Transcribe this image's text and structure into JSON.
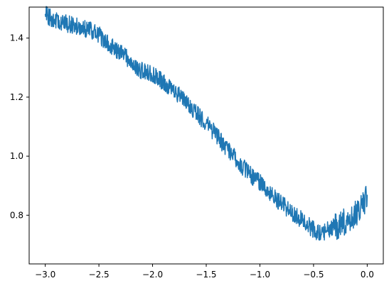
{
  "chart_data": {
    "type": "line",
    "title": "",
    "xlabel": "",
    "ylabel": "",
    "xlim": [
      -3.15,
      0.15
    ],
    "ylim": [
      0.635,
      1.505
    ],
    "grid": false,
    "legend": "none",
    "x_ticks": [
      {
        "value": -3.0,
        "label": "−3.0"
      },
      {
        "value": -2.5,
        "label": "−2.5"
      },
      {
        "value": -2.0,
        "label": "−2.0"
      },
      {
        "value": -1.5,
        "label": "−1.5"
      },
      {
        "value": -1.0,
        "label": "−1.0"
      },
      {
        "value": -0.5,
        "label": "−0.5"
      },
      {
        "value": 0.0,
        "label": "0.0"
      }
    ],
    "y_ticks": [
      {
        "value": 0.8,
        "label": "0.8"
      },
      {
        "value": 1.0,
        "label": "1.0"
      },
      {
        "value": 1.2,
        "label": "1.2"
      },
      {
        "value": 1.4,
        "label": "1.4"
      }
    ],
    "series": [
      {
        "color": "#1f77b4",
        "points": [
          [
            -3.0,
            1.48
          ],
          [
            -2.9,
            1.46
          ],
          [
            -2.8,
            1.45
          ],
          [
            -2.7,
            1.44
          ],
          [
            -2.6,
            1.43
          ],
          [
            -2.5,
            1.41
          ],
          [
            -2.4,
            1.38
          ],
          [
            -2.3,
            1.35
          ],
          [
            -2.2,
            1.32
          ],
          [
            -2.1,
            1.29
          ],
          [
            -2.0,
            1.28
          ],
          [
            -1.9,
            1.25
          ],
          [
            -1.8,
            1.22
          ],
          [
            -1.7,
            1.19
          ],
          [
            -1.6,
            1.15
          ],
          [
            -1.5,
            1.11
          ],
          [
            -1.4,
            1.07
          ],
          [
            -1.3,
            1.02
          ],
          [
            -1.2,
            0.98
          ],
          [
            -1.1,
            0.94
          ],
          [
            -1.0,
            0.91
          ],
          [
            -0.9,
            0.87
          ],
          [
            -0.8,
            0.84
          ],
          [
            -0.7,
            0.81
          ],
          [
            -0.6,
            0.78
          ],
          [
            -0.5,
            0.75
          ],
          [
            -0.45,
            0.74
          ],
          [
            -0.4,
            0.745
          ],
          [
            -0.3,
            0.76
          ],
          [
            -0.2,
            0.78
          ],
          [
            -0.1,
            0.81
          ],
          [
            -0.05,
            0.83
          ],
          [
            0.0,
            0.86
          ]
        ],
        "noise_amplitude": 0.03
      }
    ]
  }
}
